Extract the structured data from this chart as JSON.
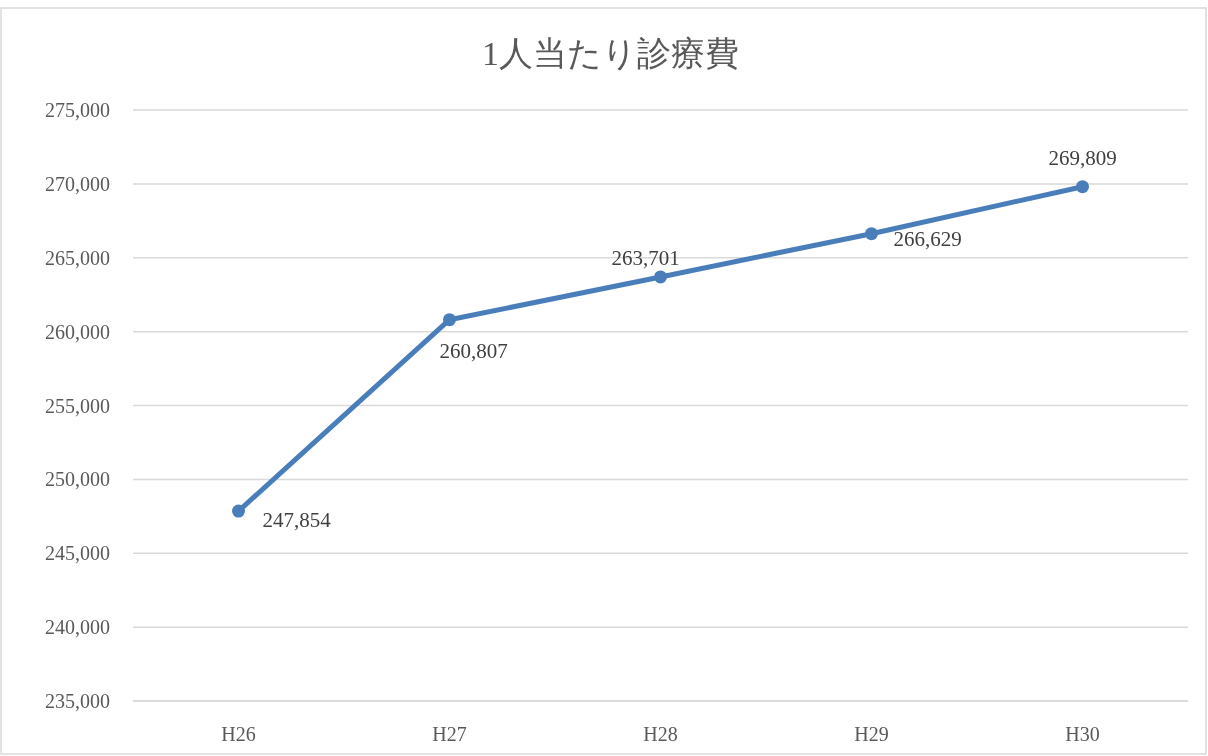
{
  "chart_data": {
    "type": "line",
    "title": "1人当たり診療費",
    "categories": [
      "H26",
      "H27",
      "H28",
      "H29",
      "H30"
    ],
    "series": [
      {
        "color": "#4a7ebb",
        "values": [
          247854,
          260807,
          263701,
          266629,
          269809
        ],
        "value_labels": [
          "247,854",
          "260,807",
          "263,701",
          "266,629",
          "269,809"
        ]
      }
    ],
    "ylim": [
      235000,
      275000
    ],
    "yticks": [
      {
        "value": 235000,
        "label": "235,000"
      },
      {
        "value": 240000,
        "label": "240,000"
      },
      {
        "value": 245000,
        "label": "245,000"
      },
      {
        "value": 250000,
        "label": "250,000"
      },
      {
        "value": 255000,
        "label": "255,000"
      },
      {
        "value": 260000,
        "label": "260,000"
      },
      {
        "value": 265000,
        "label": "265,000"
      },
      {
        "value": 270000,
        "label": "270,000"
      },
      {
        "value": 275000,
        "label": "275,000"
      }
    ],
    "grid": "y",
    "marker": "circle",
    "line_style": "solid"
  }
}
